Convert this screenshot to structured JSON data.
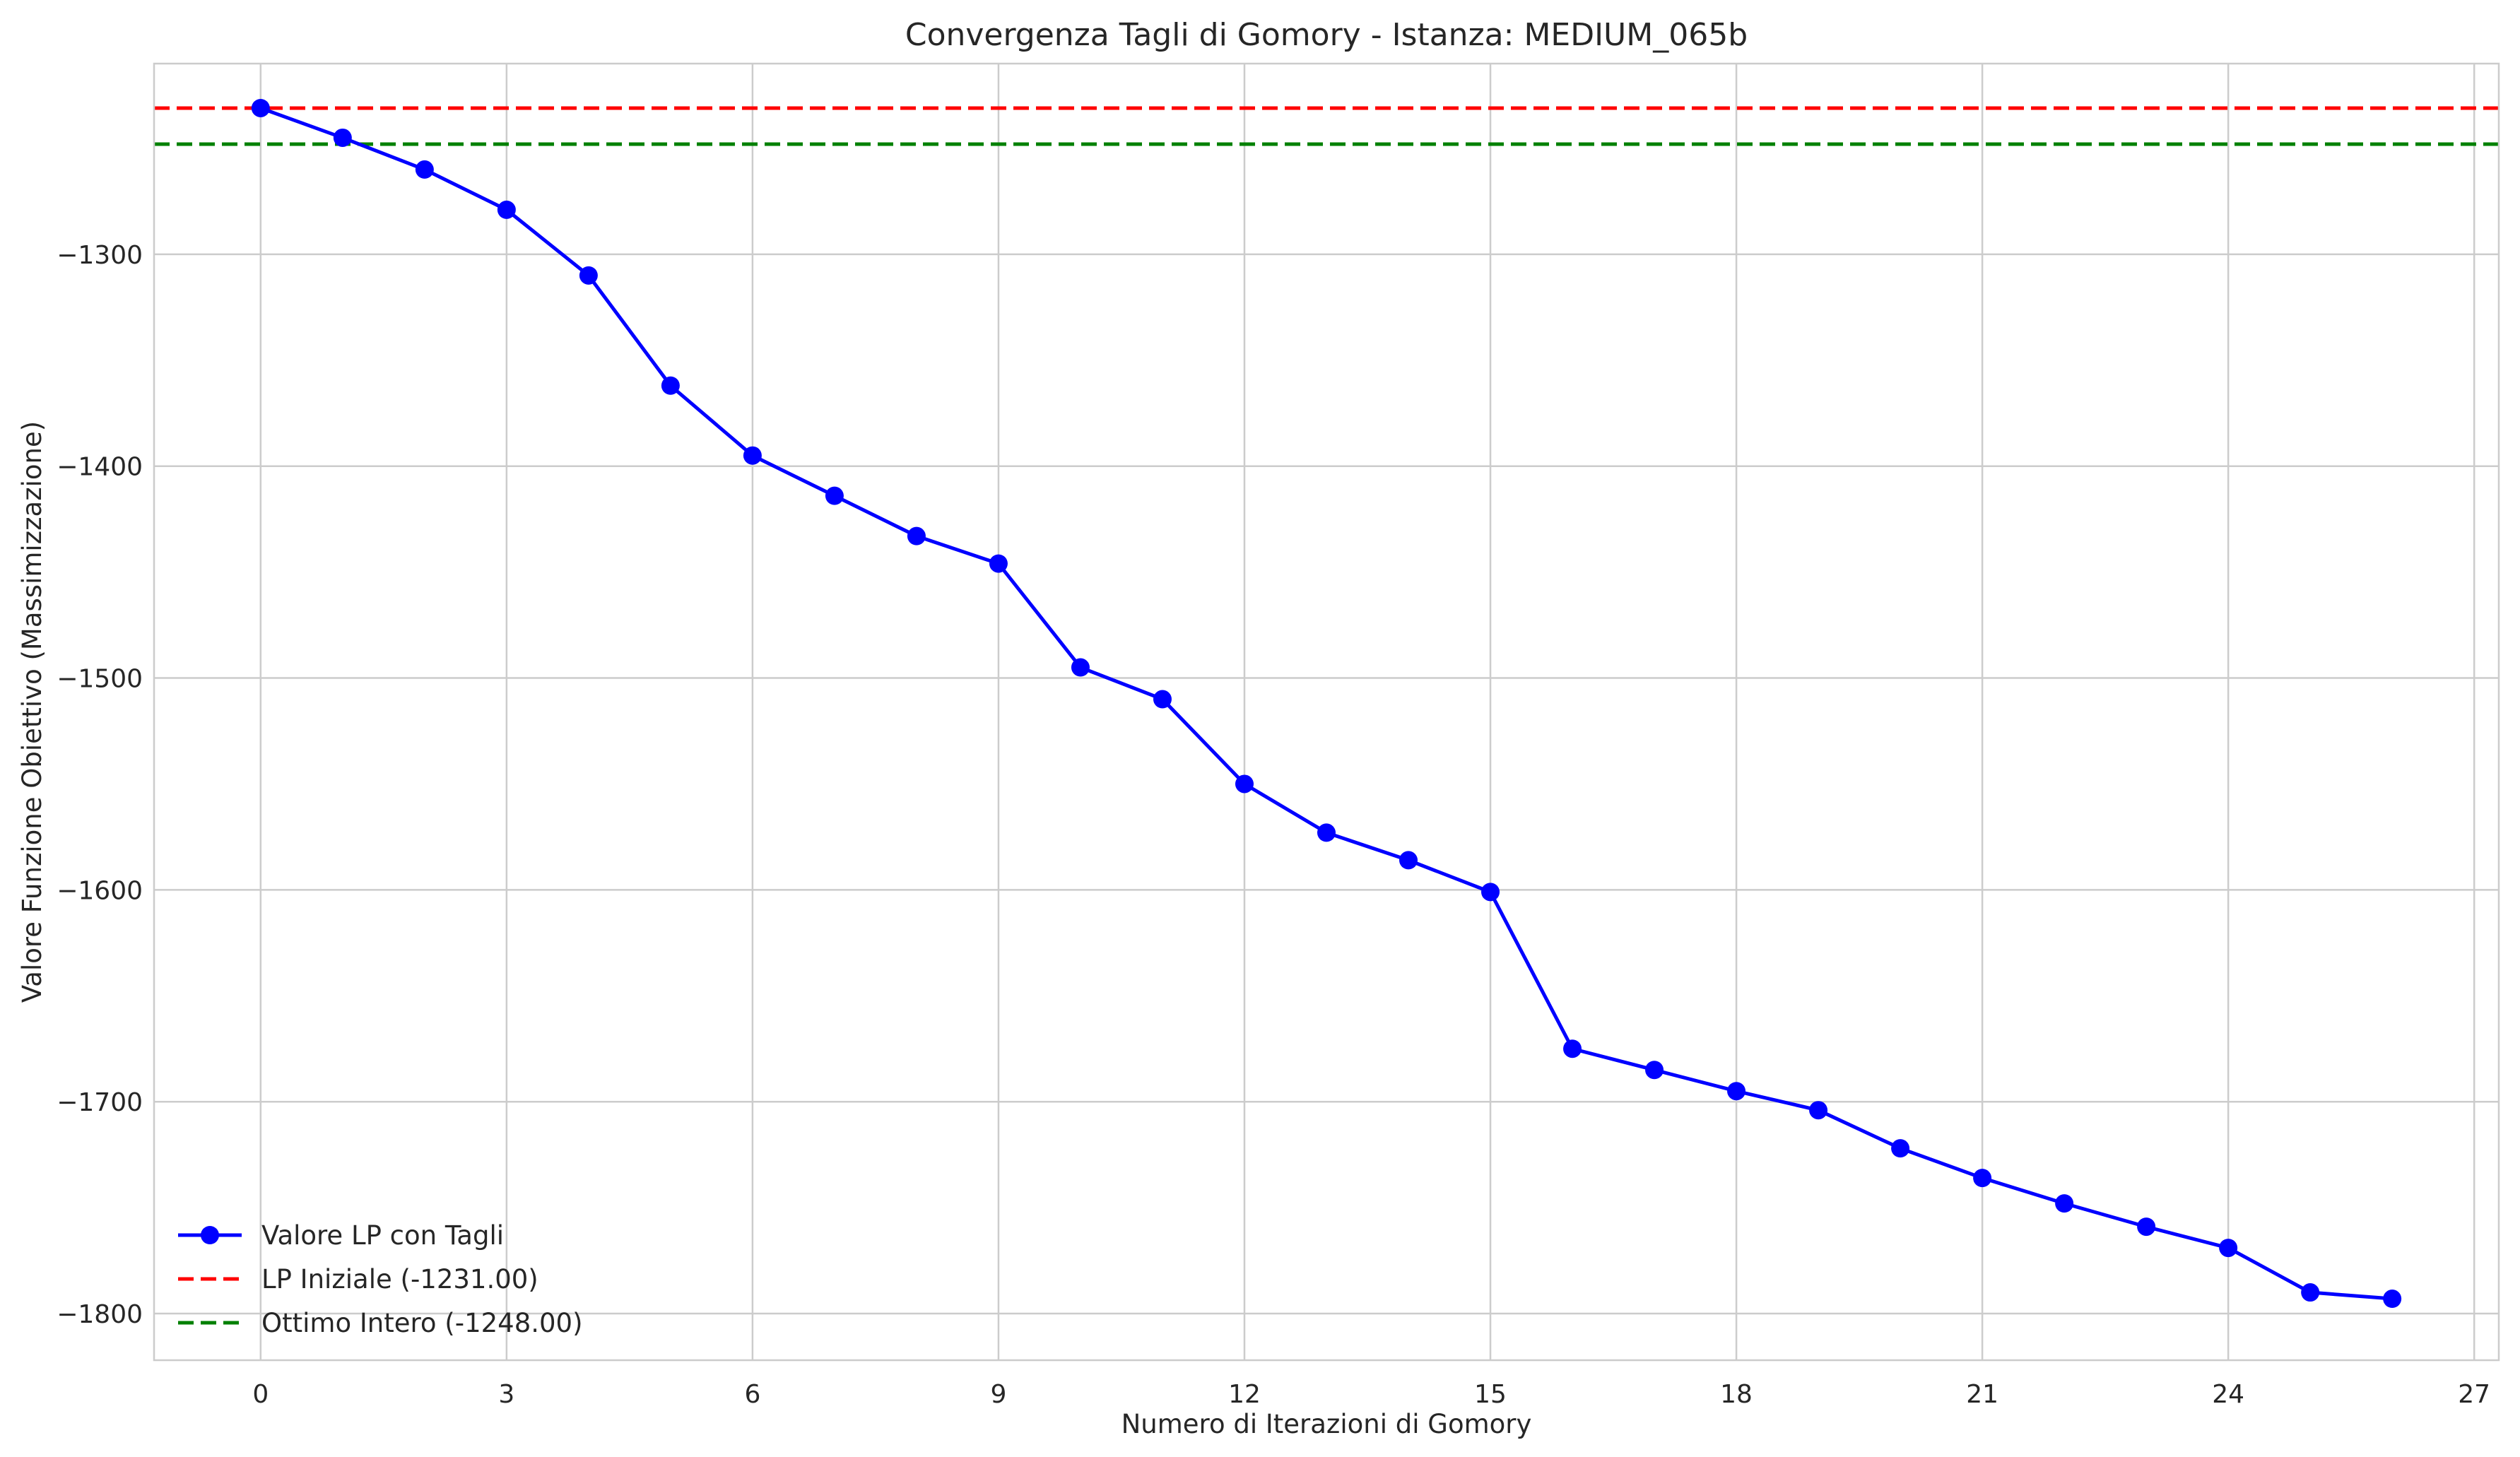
{
  "chart_data": {
    "type": "line",
    "title": "Convergenza Tagli di Gomory - Istanza: MEDIUM_065b",
    "xlabel": "Numero di Iterazioni di Gomory",
    "ylabel": "Valore Funzione Obiettivo (Massimizzazione)",
    "xlim": [
      -1.3,
      27.3
    ],
    "ylim": [
      -1822,
      -1210
    ],
    "xticks": [
      0,
      3,
      6,
      9,
      12,
      15,
      18,
      21,
      24,
      27
    ],
    "yticks": [
      -1300,
      -1400,
      -1500,
      -1600,
      -1700,
      -1800
    ],
    "ytick_labels": [
      "−1300",
      "−1400",
      "−1500",
      "−1600",
      "−1700",
      "−1800"
    ],
    "grid": true,
    "legend_position": "bottom-left",
    "x": [
      0,
      1,
      2,
      3,
      4,
      5,
      6,
      7,
      8,
      9,
      10,
      11,
      12,
      13,
      14,
      15,
      16,
      17,
      18,
      19,
      20,
      21,
      22,
      23,
      24,
      25,
      26
    ],
    "series": [
      {
        "name": "Valore LP con Tagli",
        "color": "#0000ff",
        "marker": "circle",
        "values": [
          -1231,
          -1245,
          -1260,
          -1279,
          -1310,
          -1362,
          -1395,
          -1414,
          -1433,
          -1446,
          -1495,
          -1510,
          -1550,
          -1573,
          -1586,
          -1601,
          -1675,
          -1685,
          -1695,
          -1704,
          -1722,
          -1736,
          -1748,
          -1759,
          -1769,
          -1790,
          -1793
        ]
      }
    ],
    "reference_lines": [
      {
        "name": "LP Iniziale (-1231.00)",
        "value": -1231,
        "color": "#ff0000",
        "style": "dashed"
      },
      {
        "name": "Ottimo Intero (-1248.00)",
        "value": -1248,
        "color": "#008000",
        "style": "dashed"
      }
    ]
  }
}
